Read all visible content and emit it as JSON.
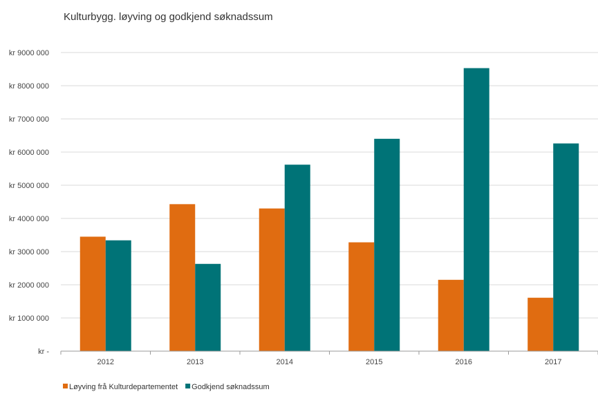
{
  "chart_data": {
    "type": "bar",
    "title": "Kulturbygg. løyving og godkjend søknadssum",
    "categories": [
      "2012",
      "2013",
      "2014",
      "2015",
      "2016",
      "2017"
    ],
    "series": [
      {
        "name": "Løyving frå Kulturdepartementet",
        "color": "#E06C11",
        "values": [
          3450000,
          4430000,
          4300000,
          3280000,
          2150000,
          1610000
        ]
      },
      {
        "name": "Godkjend søknadssum",
        "color": "#007377",
        "values": [
          3340000,
          2630000,
          5620000,
          6400000,
          8530000,
          6260000
        ]
      }
    ],
    "ylim": [
      0,
      9000000
    ],
    "yticks": [
      0,
      1000000,
      2000000,
      3000000,
      4000000,
      5000000,
      6000000,
      7000000,
      8000000,
      9000000
    ],
    "ytick_labels": [
      "kr -",
      "kr 1000 000",
      "kr 2000 000",
      "kr 3000 000",
      "kr 4000 000",
      "kr 5000 000",
      "kr 6000 000",
      "kr 7000 000",
      "kr 8000 000",
      "kr 9000 000"
    ],
    "xlabel": "",
    "ylabel": "",
    "grid": true,
    "legend_position": "bottom-left"
  }
}
